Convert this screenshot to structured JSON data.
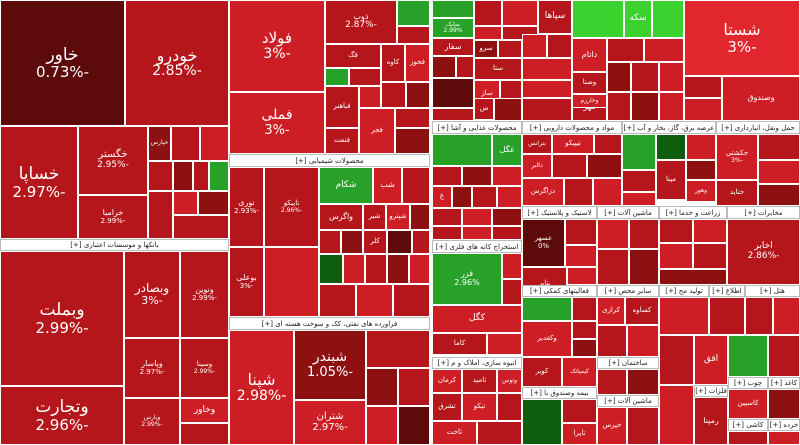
{
  "colors": {
    "dark": "#5c0a0a",
    "deep": "#8e1111",
    "red": "#b5161b",
    "mid": "#cd1e25",
    "light": "#e2262d",
    "green": "#27a127",
    "brightgreen": "#3bd12f",
    "darkgreen": "#0e5d0e",
    "lime": "#5fe23b"
  },
  "headers": {
    "banks": "بانکها و موسسات اعتباری [+]",
    "chemical": "محصولات شیمیایی [+]",
    "petroleum": "فراورده های نفتی، کک و سوخت هسته ای [+]",
    "food": "محصولات غذایی و آشا [+]",
    "pharma": "مواد و محصولات دارویی [+]",
    "utilities": "عرضه برق، گاز، بخار و آب [+]",
    "transport": "حمل ونقل، انبارداری [+]",
    "telecom": "مخابرات [+]",
    "machinery": "ماشین آلات [+]",
    "plastic": "لاستیک و پلاستیک [+]",
    "agri": "زراعت و خدما [+]",
    "mining": "استخراج کانه های فلزی [+]",
    "misc": "سایر محص [+]",
    "production": "تولید مح [+]",
    "info": "اطلاع [+]",
    "hotel": "هتل [+]",
    "chemactivity": "فعالیتهای کمکی [+]",
    "construction": "ساختمان [+]",
    "realestate": "انبوه سازی، املاک و م [+]",
    "insurance": "بیمه وصندوق با [+]",
    "machinery2": "ماشین آلات [+]",
    "metal": "فلزات [+]",
    "wood": "چوب [+]",
    "paper": "کاغذ [+]",
    "tile": "کاشی [+]",
    "ret": "خرده [+]"
  },
  "tiles": [
    {
      "name": "خاور",
      "value": "-0.73%"
    },
    {
      "name": "خودرو",
      "value": "-2.85%"
    },
    {
      "name": "خساپا",
      "value": "-2.97%"
    },
    {
      "name": "خگستر",
      "value": "-2.95%"
    },
    {
      "name": "خپارس",
      "value": ""
    },
    {
      "name": "خرامیا",
      "value": "-2.99%"
    },
    {
      "name": "وبملت",
      "value": "-2.99%"
    },
    {
      "name": "وبصادر",
      "value": "-3%"
    },
    {
      "name": "ونوین",
      "value": "-2.99%"
    },
    {
      "name": "وتجارت",
      "value": "-2.96%"
    },
    {
      "name": "وپاسار",
      "value": "-2.97%"
    },
    {
      "name": "وسینا",
      "value": "-2.99%"
    },
    {
      "name": "وپارس",
      "value": "-2.99%"
    },
    {
      "name": "وخاور",
      "value": ""
    },
    {
      "name": "فولاد",
      "value": "-3%"
    },
    {
      "name": "فملی",
      "value": "-3%"
    },
    {
      "name": "ذوب",
      "value": "-2.87%"
    },
    {
      "name": "کاوه",
      "value": ""
    },
    {
      "name": "فخوز",
      "value": ""
    },
    {
      "name": "فباهنر",
      "value": ""
    },
    {
      "name": "فنفت",
      "value": ""
    },
    {
      "name": "فجر",
      "value": ""
    },
    {
      "name": "فگ",
      "value": ""
    },
    {
      "name": "سایک",
      "value": "2.99%"
    },
    {
      "name": "سپاها",
      "value": ""
    },
    {
      "name": "سفار",
      "value": ""
    },
    {
      "name": "سرو",
      "value": ""
    },
    {
      "name": "ستا",
      "value": ""
    },
    {
      "name": "ساز",
      "value": ""
    },
    {
      "name": "س",
      "value": ""
    },
    {
      "name": "سکه",
      "value": ""
    },
    {
      "name": "داتام",
      "value": ""
    },
    {
      "name": "وصنا",
      "value": ""
    },
    {
      "name": "مهر",
      "value": ""
    },
    {
      "name": "وخارزم",
      "value": ""
    },
    {
      "name": "شستا",
      "value": "-3%"
    },
    {
      "name": "وصندوق",
      "value": ""
    },
    {
      "name": "نوری",
      "value": "-2.93%"
    },
    {
      "name": "تاپیکو",
      "value": "-2.96%"
    },
    {
      "name": "شکام",
      "value": ""
    },
    {
      "name": "شب",
      "value": ""
    },
    {
      "name": "واگرس",
      "value": ""
    },
    {
      "name": "شیر",
      "value": ""
    },
    {
      "name": "شپترو",
      "value": ""
    },
    {
      "name": "بوعلی",
      "value": "-3%"
    },
    {
      "name": "کلر",
      "value": ""
    },
    {
      "name": "شپنا",
      "value": "-2.98%"
    },
    {
      "name": "شبندر",
      "value": "-1.05%"
    },
    {
      "name": "شتران",
      "value": "-2.97%"
    },
    {
      "name": "غگل",
      "value": ""
    },
    {
      "name": "غ",
      "value": ""
    },
    {
      "name": "بترانس",
      "value": ""
    },
    {
      "name": "تیپیکو",
      "value": ""
    },
    {
      "name": "دالبر",
      "value": ""
    },
    {
      "name": "دزاگرس",
      "value": ""
    },
    {
      "name": "فارس",
      "value": ""
    },
    {
      "name": "ذ",
      "value": ""
    },
    {
      "name": "کگل",
      "value": ""
    },
    {
      "name": "فزر",
      "value": "2.96%"
    },
    {
      "name": "عسهر",
      "value": "0%"
    },
    {
      "name": "پتایر",
      "value": ""
    },
    {
      "name": "کاما",
      "value": ""
    },
    {
      "name": "وکغدیر",
      "value": ""
    },
    {
      "name": "کرمان",
      "value": ""
    },
    {
      "name": "ثامید",
      "value": ""
    },
    {
      "name": "وتوس",
      "value": ""
    },
    {
      "name": "تشرق",
      "value": ""
    },
    {
      "name": "تیکو",
      "value": ""
    },
    {
      "name": "ثاخت",
      "value": ""
    },
    {
      "name": "کویر",
      "value": ""
    },
    {
      "name": "کیمیاتک",
      "value": ""
    },
    {
      "name": "کرازی",
      "value": ""
    },
    {
      "name": "کساوه",
      "value": ""
    },
    {
      "name": "خپرس",
      "value": ""
    },
    {
      "name": "تاپرا",
      "value": ""
    },
    {
      "name": "مپنا",
      "value": ""
    },
    {
      "name": "وهور",
      "value": ""
    },
    {
      "name": "حکشتی",
      "value": "-3%"
    },
    {
      "name": "حتاید",
      "value": ""
    },
    {
      "name": "افق",
      "value": ""
    },
    {
      "name": "اخابر",
      "value": "-2.86%"
    },
    {
      "name": "رمپنا",
      "value": ""
    },
    {
      "name": "کاسپین",
      "value": ""
    }
  ]
}
